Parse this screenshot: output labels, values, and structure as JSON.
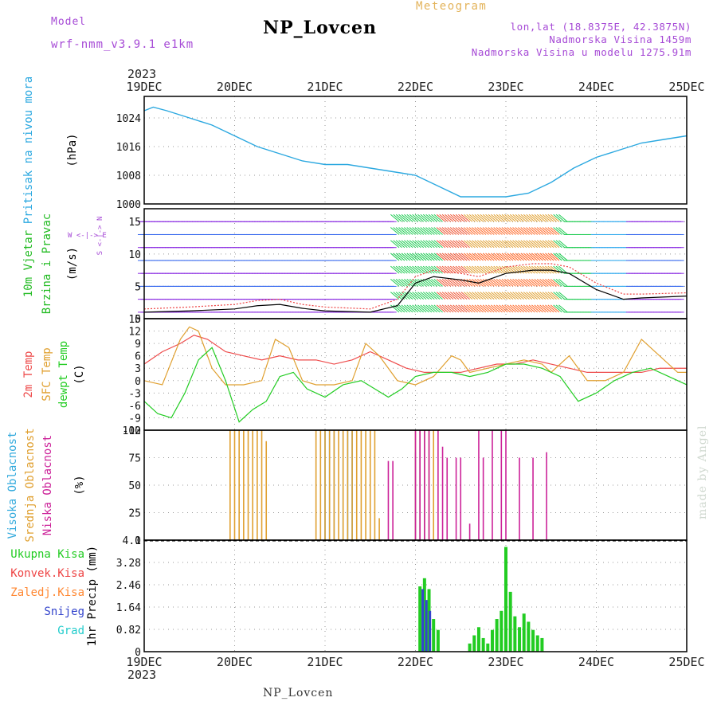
{
  "header": {
    "model_label": "Model",
    "model_name": "wrf-nmm_v3.9.1 e1km",
    "title": "Meteogram",
    "station": "NP_Lovcen",
    "coords": "lon,lat (18.8375E, 42.3875N)",
    "elevation": "Nadmorska Visina 1459m",
    "model_elevation": "Nadmorska Visina u modelu 1275.91m",
    "watermark": "made by Angel",
    "year_top": "2023",
    "year_bottom": "2023",
    "station_bottom": "NP_Lovcen"
  },
  "x_axis": {
    "ticks": [
      "19DEC",
      "20DEC",
      "21DEC",
      "22DEC",
      "23DEC",
      "24DEC",
      "25DEC"
    ]
  },
  "colors": {
    "pressure": "#2ba8e0",
    "temp2m": "#ee4b4b",
    "sfc_temp": "#e0a030",
    "dewpt": "#22cc22",
    "high_cloud": "#33aadd",
    "mid_cloud": "#e0a030",
    "low_cloud": "#cc2299",
    "total_precip": "#22cc22",
    "conv_precip": "#ee4444",
    "frozen_precip": "#ff8833",
    "snow": "#3344cc",
    "graupel": "#22cccc",
    "wind_speed": "#000000",
    "wind_gust": "#ee4444"
  },
  "panel_labels": {
    "pressure": {
      "name": "Pritisak na nivou mora",
      "unit": "(hPa)"
    },
    "wind": {
      "name1": "10m Vjetar",
      "name2": "Brzina i Pravac",
      "unit": "(m/s)",
      "dir_icon_label": "W <-|-> E",
      "dir_icon_label2": "S <-|-> N"
    },
    "temp": {
      "name1": "2m Temp",
      "name2": "SFC Temp",
      "name3": "dewpt Temp",
      "unit": "(C)"
    },
    "cloud": {
      "name1": "Visoka Oblacnost",
      "name2": "Srednja Oblacnost",
      "name3": "Niska Oblacnost",
      "unit": "(%)"
    },
    "precip": {
      "unit": "1hr Precip (mm)",
      "legend": [
        "Ukupna Kisa",
        "Konvek.Kisa",
        "Zaledj.Kisa",
        "Snijeg",
        "Grad"
      ]
    }
  },
  "chart_data": [
    {
      "type": "line",
      "title": "Pritisak na nivou mora",
      "ylabel": "(hPa)",
      "ylim": [
        1000,
        1030
      ],
      "yticks": [
        "1000",
        "1008",
        "1016",
        "1024"
      ],
      "grid": true,
      "series": [
        {
          "name": "Pritisak na nivou mora",
          "x": [
            0,
            0.1,
            0.25,
            0.5,
            0.75,
            1.0,
            1.25,
            1.5,
            1.75,
            2.0,
            2.25,
            2.5,
            2.75,
            3.0,
            3.25,
            3.5,
            3.75,
            4.0,
            4.25,
            4.5,
            4.75,
            5.0,
            5.25,
            5.5,
            5.75,
            6.0
          ],
          "y": [
            1026,
            1027,
            1026,
            1024,
            1022,
            1019,
            1016,
            1014,
            1012,
            1011,
            1011,
            1010,
            1009,
            1008,
            1005,
            1002,
            1002,
            1002,
            1003,
            1006,
            1010,
            1013,
            1015,
            1017,
            1018,
            1019
          ]
        }
      ]
    },
    {
      "type": "line",
      "title": "10m Vjetar Brzina i Pravac",
      "ylabel": "(m/s)",
      "ylim": [
        0,
        17
      ],
      "yticks": [
        "0",
        "5",
        "10",
        "15"
      ],
      "grid": true,
      "series": [
        {
          "name": "Brzina",
          "x": [
            0,
            0.5,
            1.0,
            1.25,
            1.5,
            1.75,
            2.0,
            2.5,
            2.8,
            3.0,
            3.2,
            3.5,
            3.7,
            4.0,
            4.3,
            4.5,
            4.7,
            5.0,
            5.3,
            5.5,
            6.0
          ],
          "y": [
            1.0,
            1.2,
            1.5,
            2.0,
            2.2,
            1.6,
            1.2,
            1.0,
            2.0,
            5.5,
            6.5,
            6.0,
            5.5,
            7.0,
            7.5,
            7.5,
            7.0,
            4.5,
            3.0,
            3.2,
            3.5
          ]
        },
        {
          "name": "Udari",
          "x": [
            0,
            0.5,
            1.0,
            1.25,
            1.5,
            1.75,
            2.0,
            2.5,
            2.8,
            3.0,
            3.2,
            3.5,
            3.7,
            4.0,
            4.3,
            4.5,
            4.7,
            5.0,
            5.3,
            5.5,
            6.0
          ],
          "y": [
            1.5,
            1.8,
            2.2,
            2.8,
            3.0,
            2.2,
            1.8,
            1.5,
            3.0,
            6.5,
            7.5,
            7.0,
            6.5,
            8.0,
            8.5,
            8.5,
            8.0,
            5.5,
            3.8,
            3.8,
            4.0
          ]
        }
      ]
    },
    {
      "type": "line",
      "title": "2m Temp / SFC Temp / dewpt Temp",
      "ylabel": "(C)",
      "ylim": [
        -12,
        15
      ],
      "yticks": [
        "-12",
        "-9",
        "-6",
        "-3",
        "0",
        "3",
        "6",
        "9",
        "12",
        "15"
      ],
      "grid": true,
      "series": [
        {
          "name": "2m Temp",
          "x": [
            0,
            0.2,
            0.4,
            0.55,
            0.7,
            0.9,
            1.1,
            1.3,
            1.5,
            1.7,
            1.9,
            2.1,
            2.3,
            2.5,
            2.7,
            2.9,
            3.1,
            3.3,
            3.5,
            3.7,
            3.9,
            4.1,
            4.3,
            4.5,
            4.7,
            4.9,
            5.1,
            5.3,
            5.5,
            5.7,
            5.9,
            6.0
          ],
          "y": [
            4,
            7,
            9,
            11,
            10,
            7,
            6,
            5,
            6,
            5,
            5,
            4,
            5,
            7,
            5,
            3,
            2,
            2,
            2,
            3,
            4,
            4,
            5,
            4,
            3,
            2,
            2,
            2,
            2,
            3,
            3,
            3
          ]
        },
        {
          "name": "SFC Temp",
          "x": [
            0,
            0.2,
            0.4,
            0.5,
            0.6,
            0.75,
            0.9,
            1.1,
            1.3,
            1.45,
            1.6,
            1.75,
            1.9,
            2.1,
            2.3,
            2.45,
            2.6,
            2.8,
            3.0,
            3.2,
            3.4,
            3.5,
            3.6,
            3.8,
            4.0,
            4.2,
            4.4,
            4.5,
            4.7,
            4.9,
            5.1,
            5.3,
            5.5,
            5.7,
            5.9,
            6.0
          ],
          "y": [
            0,
            -1,
            10,
            13,
            12,
            3,
            -1,
            -1,
            0,
            10,
            8,
            0,
            -1,
            -1,
            0,
            9,
            6,
            0,
            -1,
            1,
            6,
            5,
            2,
            3,
            4,
            5,
            4,
            2,
            6,
            0,
            0,
            2,
            10,
            6,
            2,
            2
          ]
        },
        {
          "name": "dewpt Temp",
          "x": [
            0,
            0.15,
            0.3,
            0.45,
            0.6,
            0.75,
            0.9,
            1.05,
            1.2,
            1.35,
            1.5,
            1.65,
            1.8,
            2.0,
            2.2,
            2.4,
            2.55,
            2.7,
            2.85,
            3.0,
            3.2,
            3.4,
            3.6,
            3.8,
            4.0,
            4.2,
            4.4,
            4.6,
            4.8,
            5.0,
            5.2,
            5.4,
            5.6,
            5.8,
            6.0
          ],
          "y": [
            -5,
            -8,
            -9,
            -3,
            5,
            8,
            0,
            -10,
            -7,
            -5,
            1,
            2,
            -2,
            -4,
            -1,
            0,
            -2,
            -4,
            -2,
            1,
            2,
            2,
            1,
            2,
            4,
            4,
            3,
            1,
            -5,
            -3,
            0,
            2,
            3,
            1,
            -1
          ]
        }
      ]
    },
    {
      "type": "bar",
      "title": "Visoka / Srednja / Niska Oblacnost",
      "ylabel": "(%)",
      "ylim": [
        0,
        100
      ],
      "yticks": [
        "0",
        "25",
        "50",
        "75",
        "100"
      ],
      "grid": true,
      "series": [
        {
          "name": "Visoka Oblacnost",
          "x": [
            2.0,
            2.05,
            2.1,
            2.2,
            2.25,
            2.3,
            3.0,
            3.05,
            3.1
          ],
          "y": [
            100,
            100,
            100,
            100,
            100,
            100,
            80,
            100,
            100
          ]
        },
        {
          "name": "Srednja Oblacnost",
          "x": [
            0.95,
            1.0,
            1.05,
            1.1,
            1.15,
            1.2,
            1.25,
            1.3,
            1.35,
            1.9,
            1.95,
            2.0,
            2.05,
            2.1,
            2.15,
            2.2,
            2.25,
            2.3,
            2.35,
            2.4,
            2.45,
            2.5,
            2.55,
            2.6,
            3.0,
            3.05,
            3.1,
            3.15,
            3.2
          ],
          "y": [
            100,
            100,
            100,
            100,
            100,
            100,
            100,
            100,
            90,
            100,
            100,
            100,
            100,
            100,
            100,
            100,
            100,
            100,
            100,
            100,
            100,
            100,
            100,
            20,
            100,
            100,
            100,
            100,
            100
          ]
        },
        {
          "name": "Niska Oblacnost",
          "x": [
            2.7,
            2.75,
            3.0,
            3.05,
            3.1,
            3.15,
            3.25,
            3.3,
            3.35,
            3.45,
            3.5,
            3.6,
            3.7,
            3.75,
            3.85,
            3.95,
            4.0,
            4.15,
            4.3,
            4.45
          ],
          "y": [
            72,
            72,
            100,
            100,
            100,
            100,
            100,
            85,
            75,
            75,
            75,
            15,
            100,
            75,
            100,
            100,
            100,
            75,
            75,
            80
          ]
        }
      ]
    },
    {
      "type": "bar",
      "title": "1hr Precip",
      "ylabel": "1hr Precip (mm)",
      "ylim": [
        0,
        4.1
      ],
      "yticks": [
        "0",
        "0.82",
        "1.64",
        "2.46",
        "3.28",
        "4.1"
      ],
      "grid": true,
      "series": [
        {
          "name": "Ukupna Kisa",
          "x": [
            3.05,
            3.1,
            3.15,
            3.2,
            3.25,
            3.6,
            3.65,
            3.7,
            3.75,
            3.8,
            3.85,
            3.9,
            3.95,
            4.0,
            4.05,
            4.1,
            4.15,
            4.2,
            4.25,
            4.3,
            4.35,
            4.4
          ],
          "y": [
            2.4,
            2.7,
            2.3,
            1.2,
            0.8,
            0.3,
            0.6,
            0.9,
            0.5,
            0.3,
            0.8,
            1.2,
            1.5,
            3.85,
            2.2,
            1.3,
            0.9,
            1.4,
            1.1,
            0.8,
            0.6,
            0.5
          ]
        },
        {
          "name": "Konvek.Kisa",
          "x": [],
          "y": []
        },
        {
          "name": "Zaledj.Kisa",
          "x": [],
          "y": []
        },
        {
          "name": "Snijeg",
          "x": [
            3.08,
            3.12,
            3.16
          ],
          "y": [
            2.3,
            1.9,
            1.5
          ]
        },
        {
          "name": "Grad",
          "x": [],
          "y": []
        }
      ]
    }
  ]
}
